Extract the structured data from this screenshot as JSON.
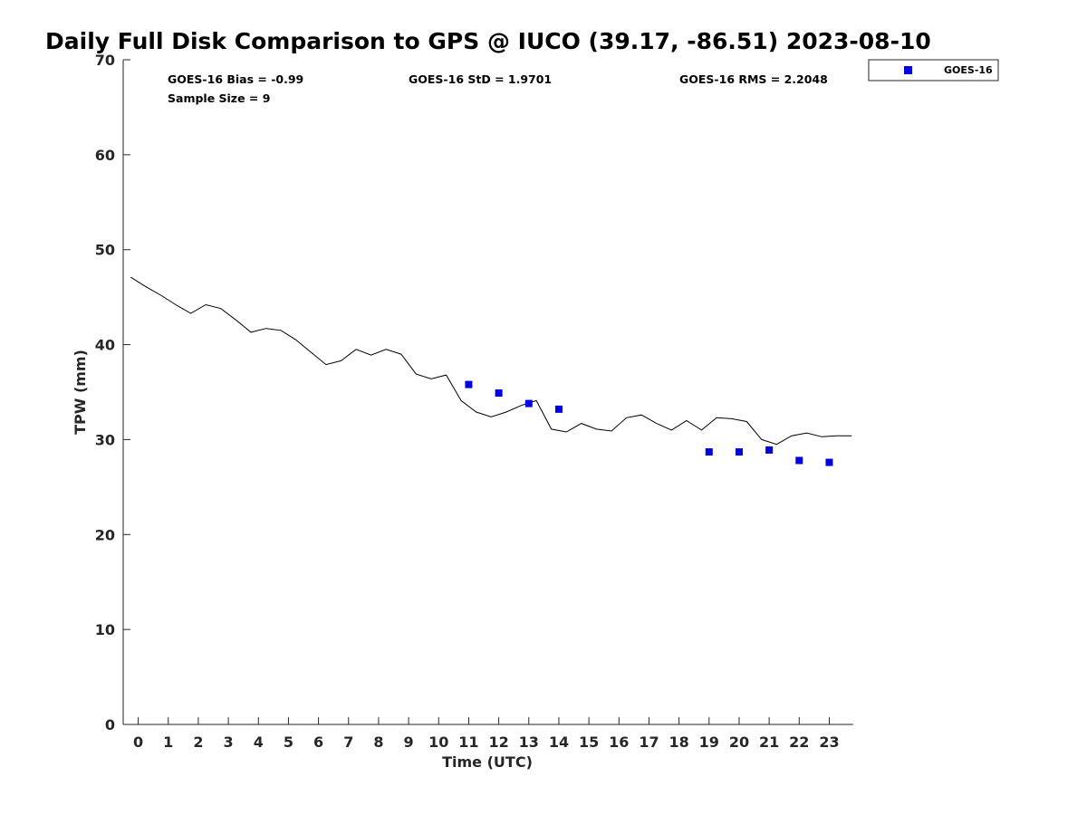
{
  "chart_data": {
    "type": "scatter",
    "title": "Daily Full Disk Comparison to GPS @ IUCO (39.17, -86.51) 2023-08-10",
    "xlabel": "Time (UTC)",
    "ylabel": "TPW (mm)",
    "xlim": [
      -0.5,
      23.8
    ],
    "ylim": [
      0,
      70
    ],
    "x_ticks": [
      "0",
      "1",
      "2",
      "3",
      "4",
      "5",
      "6",
      "7",
      "8",
      "9",
      "10",
      "11",
      "12",
      "13",
      "14",
      "15",
      "16",
      "17",
      "18",
      "19",
      "20",
      "21",
      "22",
      "23"
    ],
    "y_ticks": [
      "0",
      "10",
      "20",
      "30",
      "40",
      "50",
      "60",
      "70"
    ],
    "grid": false,
    "legend_position": "outside top-right",
    "stats": {
      "bias": "GOES-16 Bias = -0.99",
      "std": "GOES-16 StD = 1.9701",
      "rms": "GOES-16 RMS = 2.2048",
      "sample_size": "Sample Size = 9"
    },
    "series": [
      {
        "kind": "line",
        "color": "#000000",
        "x": [
          -0.25,
          0.25,
          0.75,
          1.25,
          1.75,
          2.25,
          2.75,
          3.25,
          3.75,
          4.25,
          4.75,
          5.25,
          5.75,
          6.25,
          6.75,
          7.25,
          7.75,
          8.25,
          8.75,
          9.25,
          9.75,
          10.25,
          10.75,
          11.25,
          11.75,
          12.25,
          12.75,
          13.25,
          13.75,
          14.25,
          14.75,
          15.25,
          15.75,
          16.25,
          16.75,
          17.25,
          17.75,
          18.25,
          18.75,
          19.25,
          19.75,
          20.25,
          20.75,
          21.25,
          21.75,
          22.25,
          22.75,
          23.25,
          23.75
        ],
        "y": [
          47.1,
          46.1,
          45.2,
          44.2,
          43.3,
          44.2,
          43.8,
          42.6,
          41.3,
          41.7,
          41.5,
          40.5,
          39.2,
          37.9,
          38.3,
          39.5,
          38.9,
          39.5,
          39.0,
          36.9,
          36.4,
          36.8,
          34.1,
          32.9,
          32.4,
          32.9,
          33.6,
          34.1,
          31.1,
          30.8,
          31.7,
          31.1,
          30.9,
          32.3,
          32.6,
          31.7,
          31.0,
          32.0,
          31.0,
          32.3,
          32.2,
          31.9,
          30.0,
          29.5,
          30.4,
          30.7,
          30.3,
          30.4,
          30.4
        ]
      },
      {
        "name": "GOES-16",
        "kind": "scatter",
        "marker": "square",
        "color": "#0000e0",
        "x": [
          11,
          12,
          13,
          14,
          19,
          20,
          21,
          22,
          23
        ],
        "y": [
          35.8,
          34.9,
          33.8,
          33.2,
          28.7,
          28.7,
          28.9,
          27.8,
          27.6
        ]
      }
    ]
  }
}
